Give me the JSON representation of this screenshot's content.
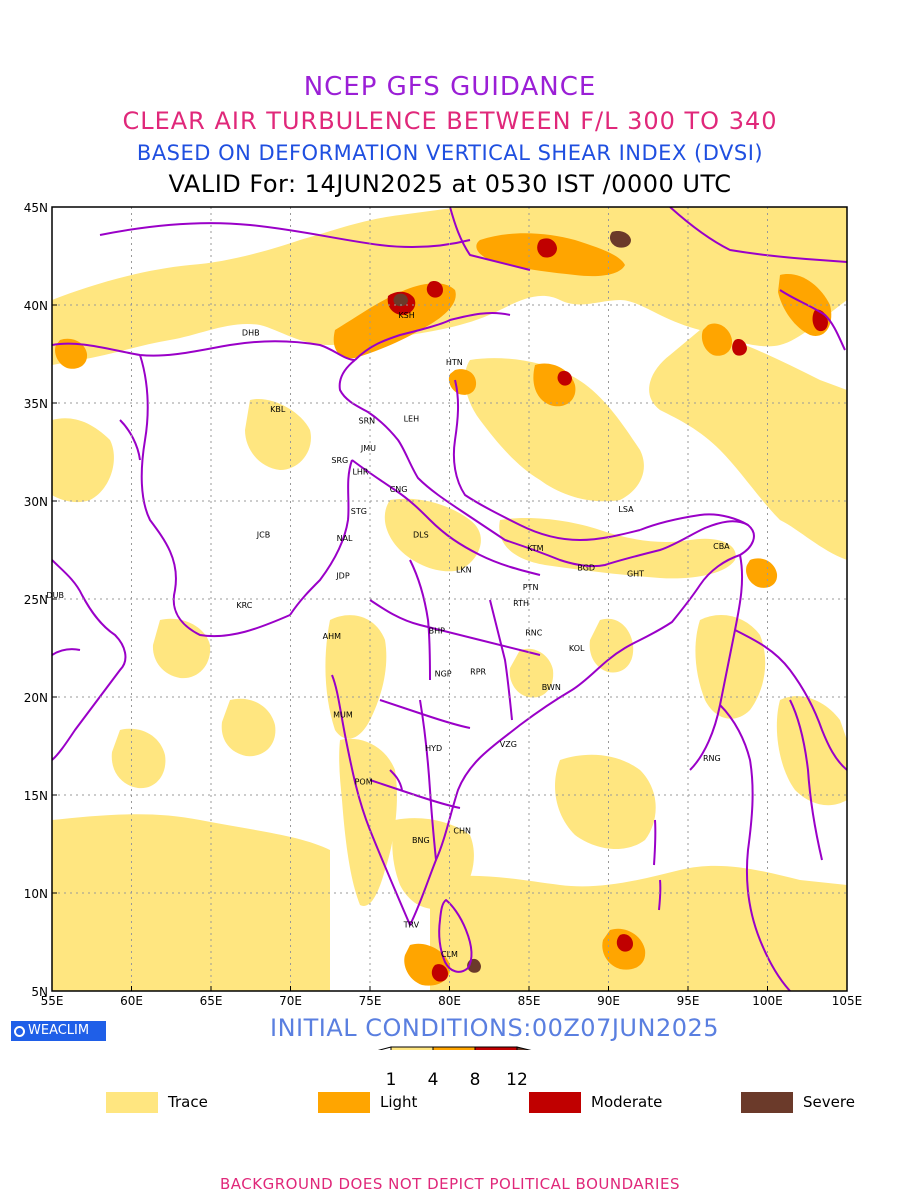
{
  "title": {
    "line1": "NCEP GFS GUIDANCE",
    "line2": "CLEAR AIR TURBULENCE BETWEEN F/L 300 TO 340",
    "line3": "BASED ON DEFORMATION VERTICAL SHEAR INDEX (DVSI)",
    "line4": "VALID For: 14JUN2025 at 0530 IST /0000 UTC"
  },
  "axes": {
    "lon_ticks": [
      "55E",
      "60E",
      "65E",
      "70E",
      "75E",
      "80E",
      "85E",
      "90E",
      "95E",
      "100E",
      "105E"
    ],
    "lat_ticks": [
      "45N",
      "40N",
      "35N",
      "30N",
      "25N",
      "20N",
      "15N",
      "10N",
      "5N"
    ]
  },
  "cities": [
    {
      "code": "KSH",
      "lon": 77.3,
      "lat": 39.5
    },
    {
      "code": "DHB",
      "lon": 67.5,
      "lat": 38.6
    },
    {
      "code": "HTN",
      "lon": 80.3,
      "lat": 37.1
    },
    {
      "code": "KBL",
      "lon": 69.2,
      "lat": 34.7
    },
    {
      "code": "SRN",
      "lon": 74.8,
      "lat": 34.1
    },
    {
      "code": "LEH",
      "lon": 77.6,
      "lat": 34.2
    },
    {
      "code": "JMU",
      "lon": 74.9,
      "lat": 32.7
    },
    {
      "code": "SRG",
      "lon": 73.1,
      "lat": 32.1
    },
    {
      "code": "LHR",
      "lon": 74.4,
      "lat": 31.5
    },
    {
      "code": "CNG",
      "lon": 76.8,
      "lat": 30.6
    },
    {
      "code": "STG",
      "lon": 74.3,
      "lat": 29.5
    },
    {
      "code": "JCB",
      "lon": 68.3,
      "lat": 28.3
    },
    {
      "code": "NAL",
      "lon": 73.4,
      "lat": 28.1
    },
    {
      "code": "DLS",
      "lon": 78.2,
      "lat": 28.3
    },
    {
      "code": "LSA",
      "lon": 91.1,
      "lat": 29.6
    },
    {
      "code": "KTM",
      "lon": 85.4,
      "lat": 27.6
    },
    {
      "code": "CBA",
      "lon": 97.1,
      "lat": 27.7
    },
    {
      "code": "JDP",
      "lon": 73.3,
      "lat": 26.2
    },
    {
      "code": "LKN",
      "lon": 80.9,
      "lat": 26.5
    },
    {
      "code": "BGD",
      "lon": 88.6,
      "lat": 26.6
    },
    {
      "code": "GHT",
      "lon": 91.7,
      "lat": 26.3
    },
    {
      "code": "DUB",
      "lon": 55.2,
      "lat": 25.2
    },
    {
      "code": "PTN",
      "lon": 85.1,
      "lat": 25.6
    },
    {
      "code": "KRC",
      "lon": 67.1,
      "lat": 24.7
    },
    {
      "code": "RTH",
      "lon": 84.5,
      "lat": 24.8
    },
    {
      "code": "AHM",
      "lon": 72.6,
      "lat": 23.1
    },
    {
      "code": "BHP",
      "lon": 79.2,
      "lat": 23.4
    },
    {
      "code": "RNC",
      "lon": 85.3,
      "lat": 23.3
    },
    {
      "code": "KOL",
      "lon": 88.0,
      "lat": 22.5
    },
    {
      "code": "NGP",
      "lon": 79.6,
      "lat": 21.2
    },
    {
      "code": "RPR",
      "lon": 81.8,
      "lat": 21.3
    },
    {
      "code": "BWN",
      "lon": 86.4,
      "lat": 20.5
    },
    {
      "code": "MUM",
      "lon": 73.3,
      "lat": 19.1
    },
    {
      "code": "HYD",
      "lon": 79.0,
      "lat": 17.4
    },
    {
      "code": "VZG",
      "lon": 83.7,
      "lat": 17.6
    },
    {
      "code": "RNG",
      "lon": 96.5,
      "lat": 16.9
    },
    {
      "code": "POM",
      "lon": 74.6,
      "lat": 15.7
    },
    {
      "code": "CHN",
      "lon": 80.8,
      "lat": 13.2
    },
    {
      "code": "BNG",
      "lon": 78.2,
      "lat": 12.7
    },
    {
      "code": "TRV",
      "lon": 77.6,
      "lat": 8.4
    },
    {
      "code": "CLM",
      "lon": 80.0,
      "lat": 6.9
    }
  ],
  "branding": {
    "weaclim": "WEACLIM"
  },
  "initial_conditions": "INITIAL CONDITIONS:00Z07JUN2025",
  "colorbar": {
    "ticks": [
      "1",
      "4",
      "8",
      "12"
    ],
    "colors": [
      "#ffe680",
      "#ffa500",
      "#c00000",
      "#6b3a2a"
    ]
  },
  "legend": [
    {
      "label": "Trace",
      "color": "#ffe680"
    },
    {
      "label": "Light",
      "color": "#ffa500"
    },
    {
      "label": "Moderate",
      "color": "#c00000"
    },
    {
      "label": "Severe",
      "color": "#6b3a2a"
    }
  ],
  "footer": "BACKGROUND DOES NOT DEPICT POLITICAL BOUNDARIES"
}
